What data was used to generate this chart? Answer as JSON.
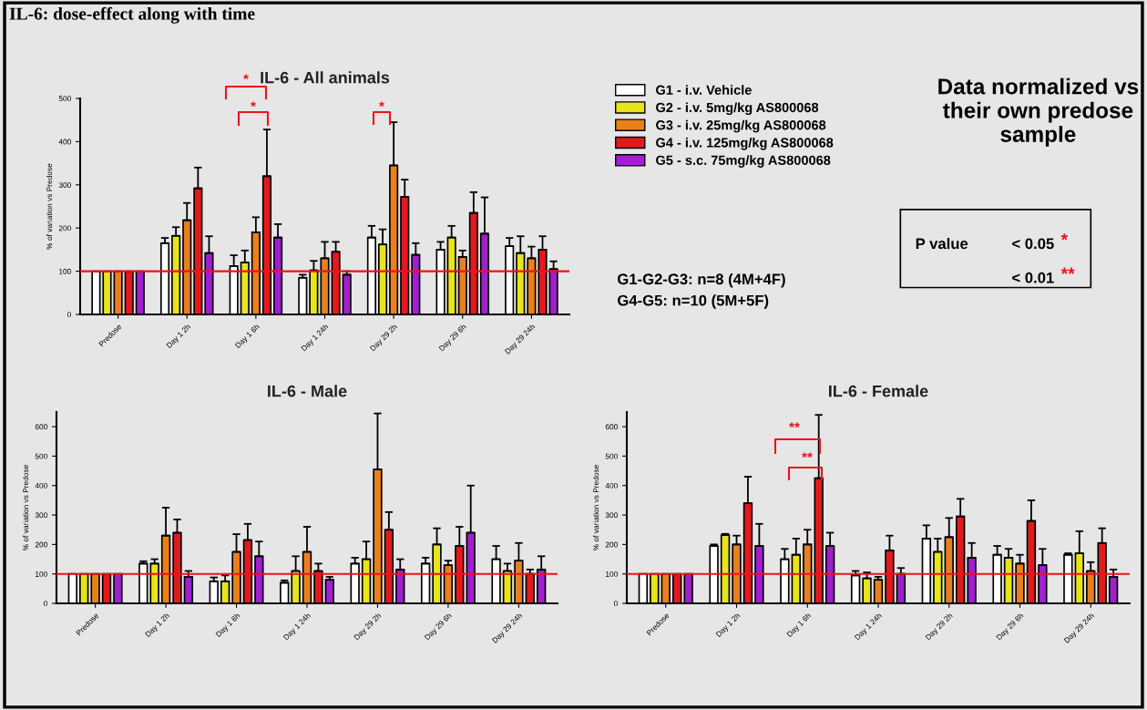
{
  "chart_data": [
    {
      "type": "bar",
      "title": "IL-6 - All animals",
      "ylabel": "% of variation vs Predose",
      "categories": [
        "Predose",
        "Day 1 2h",
        "Day 1 6h",
        "Day 1 24h",
        "Day 29 2h",
        "Day 29 6h",
        "Day 29 24h"
      ],
      "series": [
        {
          "name": "G1 - i.v. Vehicle",
          "color": "#ffffff",
          "values": [
            100,
            165,
            112,
            85,
            178,
            150,
            158
          ],
          "errors": [
            null,
            [
              165,
              177
            ],
            [
              112,
              137
            ],
            [
              85,
              92
            ],
            [
              178,
              205
            ],
            [
              150,
              168
            ],
            [
              158,
              177
            ]
          ]
        },
        {
          "name": "G2 - i.v. 5mg/kg AS800068",
          "color": "#e8e41c",
          "values": [
            100,
            182,
            120,
            102,
            162,
            178,
            142
          ],
          "errors": [
            null,
            [
              182,
              202
            ],
            [
              120,
              148
            ],
            [
              102,
              124
            ],
            [
              162,
              197
            ],
            [
              178,
              205
            ],
            [
              142,
              181
            ]
          ]
        },
        {
          "name": "G3 - i.v. 25mg/kg AS800068",
          "color": "#e8801c",
          "values": [
            100,
            218,
            190,
            130,
            345,
            133,
            130
          ],
          "errors": [
            null,
            [
              218,
              258
            ],
            [
              190,
              225
            ],
            [
              130,
              168
            ],
            [
              345,
              445
            ],
            [
              133,
              148
            ],
            [
              130,
              157
            ]
          ]
        },
        {
          "name": "G4 - i.v. 125mg/kg AS800068",
          "color": "#e31a1c",
          "values": [
            100,
            292,
            320,
            145,
            272,
            235,
            150
          ],
          "errors": [
            null,
            [
              292,
              340
            ],
            [
              320,
              428
            ],
            [
              145,
              168
            ],
            [
              272,
              312
            ],
            [
              235,
              283
            ],
            [
              150,
              181
            ]
          ]
        },
        {
          "name": "G5 - s.c. 75mg/kg AS800068",
          "color": "#a21fd0",
          "values": [
            100,
            142,
            178,
            92,
            138,
            187,
            105
          ],
          "errors": [
            null,
            [
              142,
              181
            ],
            [
              178,
              209
            ],
            [
              92,
              100
            ],
            [
              138,
              165
            ],
            [
              187,
              271
            ],
            [
              105,
              123
            ]
          ]
        }
      ],
      "ylim": [
        0,
        500
      ],
      "yticks": [
        0,
        100,
        200,
        300,
        400,
        500
      ],
      "grid": false,
      "legend": "right",
      "ref_lines": [
        {
          "axis": "y",
          "value": 100,
          "color": "#e8141b"
        }
      ],
      "annotations": [
        "IL-6: dose-effect along with time",
        "Data normalized vs their own predose sample",
        "G1-G2-G3: n=8 (4M+4F)",
        "G4-G5: n=10 (5M+5F)",
        "P value",
        "< 0.05",
        "*",
        "< 0.01",
        "**",
        "*",
        "*",
        "*"
      ]
    },
    {
      "type": "bar",
      "title": "IL-6 - Male",
      "ylabel": "% of variation vs Predose",
      "categories": [
        "Predose",
        "Day 1 2h",
        "Day 1 6h",
        "Day 1 24h",
        "Day 29 2h",
        "Day 29 6h",
        "Day 29 24h"
      ],
      "series": [
        {
          "color": "#ffffff",
          "values": [
            100,
            135,
            75,
            70,
            135,
            135,
            150
          ],
          "errors": [
            null,
            [
              135,
              143
            ],
            [
              75,
              88
            ],
            [
              70,
              78
            ],
            [
              135,
              155
            ],
            [
              135,
              155
            ],
            [
              150,
              195
            ]
          ]
        },
        {
          "color": "#e8e41c",
          "values": [
            100,
            135,
            75,
            110,
            150,
            200,
            110
          ],
          "errors": [
            null,
            [
              135,
              150
            ],
            [
              75,
              95
            ],
            [
              110,
              160
            ],
            [
              150,
              210
            ],
            [
              200,
              255
            ],
            [
              110,
              135
            ]
          ]
        },
        {
          "color": "#e8801c",
          "values": [
            100,
            230,
            175,
            175,
            455,
            130,
            145
          ],
          "errors": [
            null,
            [
              230,
              325
            ],
            [
              175,
              235
            ],
            [
              175,
              260
            ],
            [
              455,
              645
            ],
            [
              130,
              145
            ],
            [
              145,
              205
            ]
          ]
        },
        {
          "color": "#e31a1c",
          "values": [
            100,
            240,
            215,
            110,
            250,
            195,
            100
          ],
          "errors": [
            null,
            [
              240,
              285
            ],
            [
              215,
              270
            ],
            [
              110,
              135
            ],
            [
              250,
              310
            ],
            [
              195,
              260
            ],
            [
              100,
              115
            ]
          ]
        },
        {
          "color": "#a21fd0",
          "values": [
            100,
            90,
            160,
            80,
            115,
            240,
            115
          ],
          "errors": [
            null,
            [
              90,
              110
            ],
            [
              160,
              210
            ],
            [
              80,
              90
            ],
            [
              115,
              150
            ],
            [
              240,
              400
            ],
            [
              115,
              160
            ]
          ]
        }
      ],
      "ylim": [
        0,
        650
      ],
      "yticks": [
        0,
        100,
        200,
        300,
        400,
        500,
        600
      ],
      "grid": false,
      "ref_lines": [
        {
          "axis": "y",
          "value": 100,
          "color": "#e8141b"
        }
      ]
    },
    {
      "type": "bar",
      "title": "IL-6 - Female",
      "ylabel": "% of variation vs Predose",
      "categories": [
        "Predose",
        "Day 1 2h",
        "Day 1 6h",
        "Day 1 24h",
        "Day 29 2h",
        "Day 29 6h",
        "Day 29 24h"
      ],
      "series": [
        {
          "color": "#ffffff",
          "values": [
            100,
            195,
            150,
            95,
            220,
            165,
            165
          ],
          "errors": [
            null,
            [
              195,
              200
            ],
            [
              150,
              185
            ],
            [
              95,
              110
            ],
            [
              220,
              265
            ],
            [
              165,
              195
            ],
            [
              165,
              170
            ]
          ]
        },
        {
          "color": "#e8e41c",
          "values": [
            100,
            232,
            165,
            85,
            175,
            155,
            170
          ],
          "errors": [
            null,
            [
              232,
              236
            ],
            [
              165,
              220
            ],
            [
              85,
              105
            ],
            [
              175,
              220
            ],
            [
              155,
              185
            ],
            [
              170,
              245
            ]
          ]
        },
        {
          "color": "#e8801c",
          "values": [
            100,
            200,
            200,
            80,
            225,
            135,
            110
          ],
          "errors": [
            null,
            [
              200,
              230
            ],
            [
              200,
              250
            ],
            [
              80,
              90
            ],
            [
              225,
              290
            ],
            [
              135,
              165
            ],
            [
              110,
              140
            ]
          ]
        },
        {
          "color": "#e31a1c",
          "values": [
            100,
            340,
            425,
            180,
            295,
            280,
            205
          ],
          "errors": [
            null,
            [
              340,
              430
            ],
            [
              425,
              640
            ],
            [
              180,
              230
            ],
            [
              295,
              355
            ],
            [
              280,
              350
            ],
            [
              205,
              255
            ]
          ]
        },
        {
          "color": "#a21fd0",
          "values": [
            100,
            195,
            195,
            100,
            155,
            130,
            90
          ],
          "errors": [
            null,
            [
              195,
              270
            ],
            [
              195,
              240
            ],
            [
              100,
              120
            ],
            [
              155,
              205
            ],
            [
              130,
              185
            ],
            [
              90,
              115
            ]
          ]
        }
      ],
      "ylim": [
        0,
        650
      ],
      "yticks": [
        0,
        100,
        200,
        300,
        400,
        500,
        600
      ],
      "grid": false,
      "ref_lines": [
        {
          "axis": "y",
          "value": 100,
          "color": "#e8141b"
        }
      ],
      "annotations": [
        "**",
        "**"
      ]
    }
  ]
}
